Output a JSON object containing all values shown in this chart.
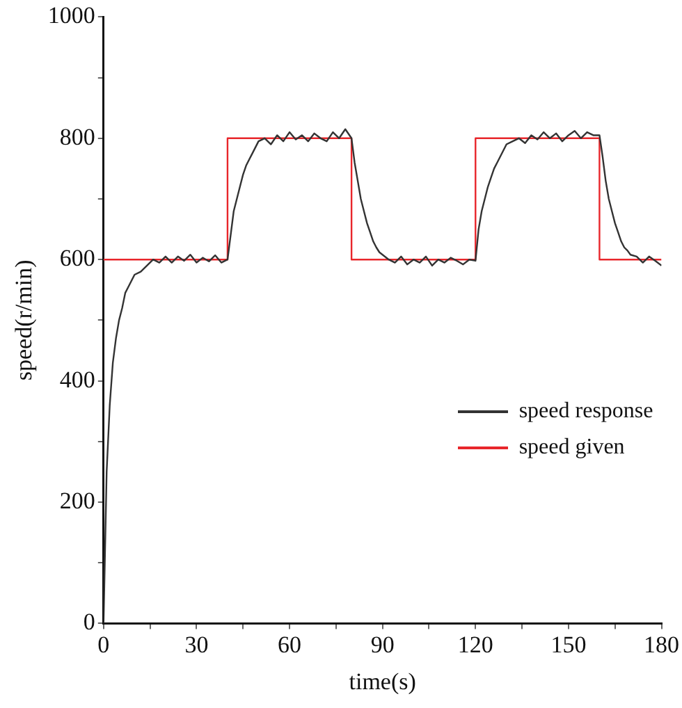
{
  "chart_data": {
    "type": "line",
    "xlabel": "time(s)",
    "ylabel": "speed(r/min)",
    "xlim": [
      0,
      180
    ],
    "ylim": [
      0,
      1000
    ],
    "xticks": [
      0,
      {
        "value": 15,
        "label": null
      },
      30,
      {
        "value": 45,
        "label": null
      },
      60,
      {
        "value": 75,
        "label": null
      },
      90,
      {
        "value": 105,
        "label": null
      },
      120,
      {
        "value": 135,
        "label": null
      },
      150,
      {
        "value": 165,
        "label": null
      },
      180
    ],
    "yticks": [
      0,
      {
        "value": 100,
        "label": null
      },
      200,
      {
        "value": 300,
        "label": null
      },
      400,
      {
        "value": 500,
        "label": null
      },
      600,
      {
        "value": 700,
        "label": null
      },
      800,
      {
        "value": 900,
        "label": null
      },
      1000
    ],
    "grid": false,
    "legend": "bottom right",
    "marker": "none",
    "line_style": "solid",
    "series": [
      {
        "name": "speed response",
        "color": "#333333",
        "x": [
          0,
          1,
          2,
          3,
          4,
          5,
          6,
          7,
          8,
          9,
          10,
          12,
          14,
          16,
          18,
          20,
          22,
          24,
          26,
          28,
          30,
          32,
          34,
          36,
          38,
          40,
          41,
          42,
          43,
          44,
          45,
          46,
          47,
          48,
          49,
          50,
          52,
          54,
          56,
          58,
          60,
          62,
          64,
          66,
          68,
          70,
          72,
          74,
          76,
          78,
          80,
          81,
          82,
          83,
          84,
          85,
          86,
          87,
          88,
          89,
          90,
          92,
          94,
          96,
          98,
          100,
          102,
          104,
          106,
          108,
          110,
          112,
          114,
          116,
          118,
          120,
          121,
          122,
          123,
          124,
          125,
          126,
          127,
          128,
          129,
          130,
          132,
          134,
          136,
          138,
          140,
          142,
          144,
          146,
          148,
          150,
          152,
          154,
          156,
          158,
          160,
          161,
          162,
          163,
          164,
          165,
          166,
          167,
          168,
          169,
          170,
          172,
          174,
          176,
          178,
          180
        ],
        "values": [
          0,
          250,
          360,
          430,
          470,
          500,
          520,
          545,
          555,
          565,
          575,
          580,
          590,
          600,
          595,
          605,
          595,
          605,
          598,
          608,
          595,
          603,
          597,
          607,
          595,
          600,
          640,
          680,
          700,
          720,
          740,
          755,
          765,
          775,
          785,
          795,
          800,
          790,
          805,
          795,
          810,
          798,
          805,
          795,
          808,
          800,
          795,
          810,
          800,
          815,
          800,
          760,
          730,
          700,
          680,
          660,
          645,
          630,
          620,
          612,
          608,
          600,
          595,
          605,
          592,
          600,
          595,
          605,
          590,
          600,
          595,
          603,
          598,
          592,
          600,
          598,
          650,
          680,
          700,
          720,
          735,
          750,
          760,
          770,
          780,
          790,
          795,
          800,
          792,
          805,
          798,
          810,
          800,
          808,
          795,
          805,
          812,
          800,
          810,
          805,
          805,
          770,
          730,
          700,
          680,
          660,
          645,
          630,
          620,
          615,
          608,
          605,
          595,
          605,
          598,
          590
        ]
      },
      {
        "name": "speed given",
        "color": "#e8262b",
        "x": [
          0,
          40,
          40,
          80,
          80,
          120,
          120,
          160,
          160,
          180
        ],
        "values": [
          600,
          600,
          800,
          800,
          600,
          600,
          800,
          800,
          600,
          600
        ]
      }
    ]
  }
}
